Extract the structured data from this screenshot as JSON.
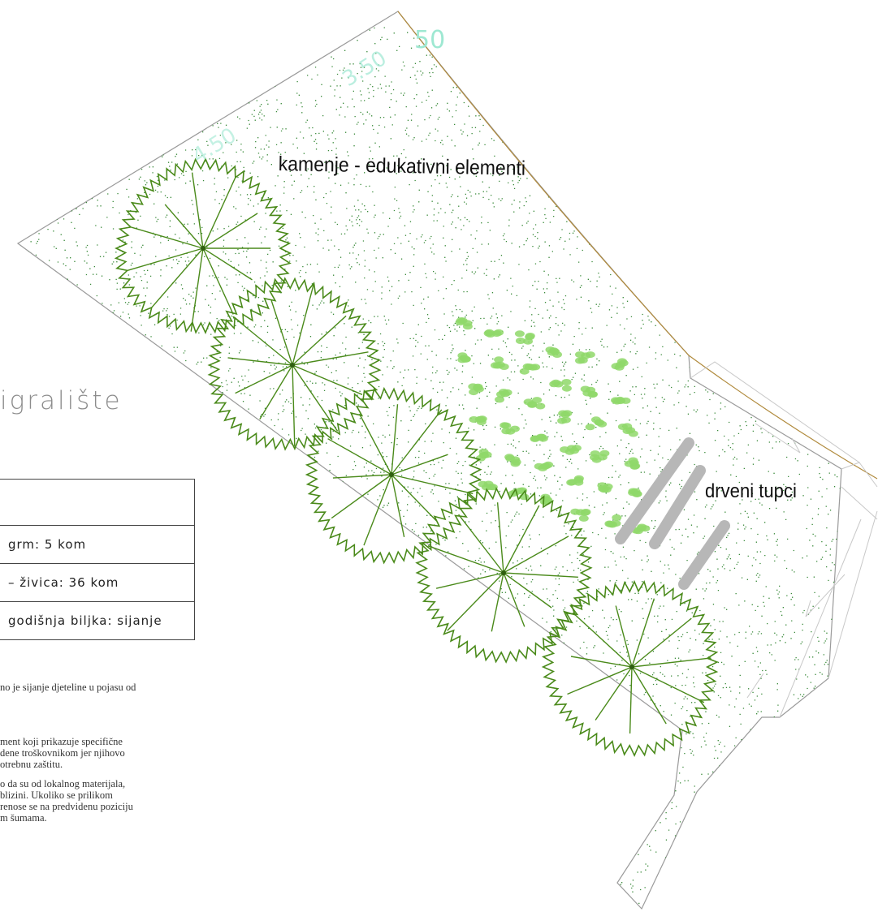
{
  "drawing": {
    "title_partial": "igralište",
    "labels": {
      "stones": "kamenje - edukativni elementi",
      "logs": "drveni tupci"
    },
    "faint_numbers": [
      "50",
      "3.50",
      "4.50"
    ],
    "legend_rows": [
      "",
      "grm: 5 kom",
      "– živica: 36 kom",
      "godišnja biljka: sijanje"
    ],
    "notes": [
      "no je sijanje djeteline u pojasu od",
      "",
      "",
      "ment koji prikazuje specifične",
      "dene troškovnikom jer njihovo",
      "otrebnu zaštitu.",
      "o da su od lokalnog materijala,",
      " blizini. Ukoliko se prilikom",
      "renose se na predvidenu poziciju",
      "m šumama."
    ],
    "colors": {
      "area_outline": "#9a9a9a",
      "boundary_arc": "#b08a3c",
      "tree": "#4a8a1a",
      "hedge": "#8fd86a",
      "logs": "#b7b7b7",
      "grass_dots": "#3a8a3a",
      "faint_annotation": "#9ee8d2"
    },
    "tree_count": 5
  }
}
